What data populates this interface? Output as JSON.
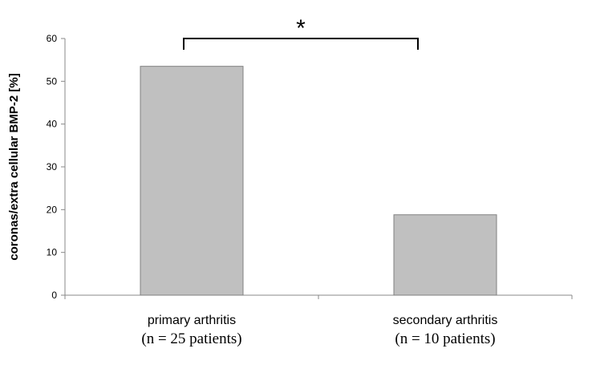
{
  "chart_data": {
    "type": "bar",
    "categories": [
      "primary arthritis",
      "secondary arthritis"
    ],
    "category_sublabels": [
      "(n = 25 patients)",
      "(n = 10 patients)"
    ],
    "values": [
      53.5,
      18.8
    ],
    "xlabel": "",
    "ylabel": "coronas/extra cellular BMP-2 [%]",
    "ylim": [
      0,
      60
    ],
    "yticks": [
      "0",
      "10",
      "20",
      "30",
      "40",
      "50",
      "60"
    ],
    "grid": false,
    "legend": "none",
    "bar_color": "#c0c0c0",
    "bar_edge_color": "#808080",
    "significance": {
      "between": [
        "primary arthritis",
        "secondary arthritis"
      ],
      "marker": "*"
    }
  }
}
